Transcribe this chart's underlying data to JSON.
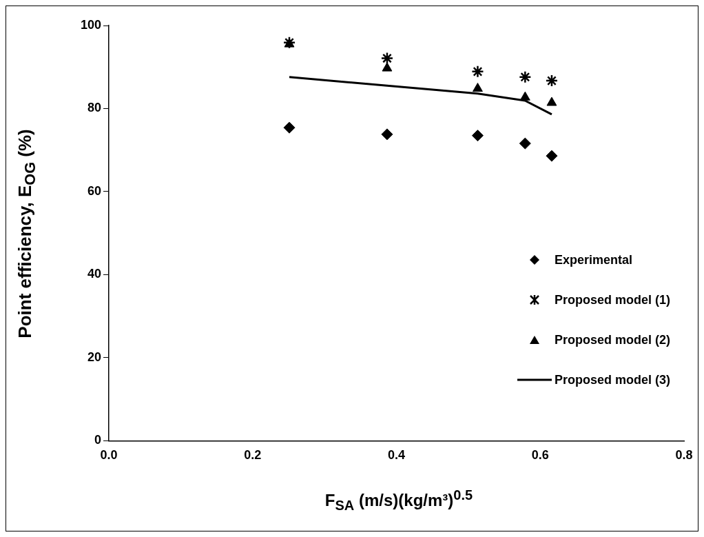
{
  "chart_data": {
    "type": "scatter",
    "xlabel": "F$_{SA}$ (m/s)(kg/m³)$^{0.5}$",
    "ylabel": "Point efficiency, E$_{OG}$ (%)",
    "x": [
      0.251,
      0.387,
      0.513,
      0.579,
      0.616
    ],
    "xlim": [
      0,
      0.8
    ],
    "xticks": [
      {
        "value": 0,
        "label": "0.0"
      },
      0.2,
      0.4,
      0.6,
      0.8
    ],
    "ylim": [
      0,
      100
    ],
    "yticks": [
      0,
      20,
      40,
      60,
      80,
      100
    ],
    "grid": false,
    "legend": "bottom right",
    "series": [
      {
        "name": "Experimental",
        "type": "scatter",
        "marker": "diamond",
        "color": "#000000",
        "values": [
          75.4,
          73.8,
          73.5,
          71.6,
          68.6
        ]
      },
      {
        "name": "Proposed model (1)",
        "type": "scatter",
        "marker": "cross",
        "color": "#000000",
        "values": [
          95.9,
          92.1,
          88.9,
          87.6,
          86.7
        ]
      },
      {
        "name": "Proposed model (2)",
        "type": "scatter",
        "marker": "triangle",
        "color": "#000000",
        "values": [
          95.5,
          89.7,
          84.8,
          82.7,
          81.4
        ]
      },
      {
        "name": "Proposed model (3)",
        "type": "line",
        "marker": "none",
        "line_style": "solid",
        "color": "#000000",
        "values": [
          87.6,
          85.5,
          83.6,
          81.9,
          78.6
        ]
      }
    ]
  }
}
